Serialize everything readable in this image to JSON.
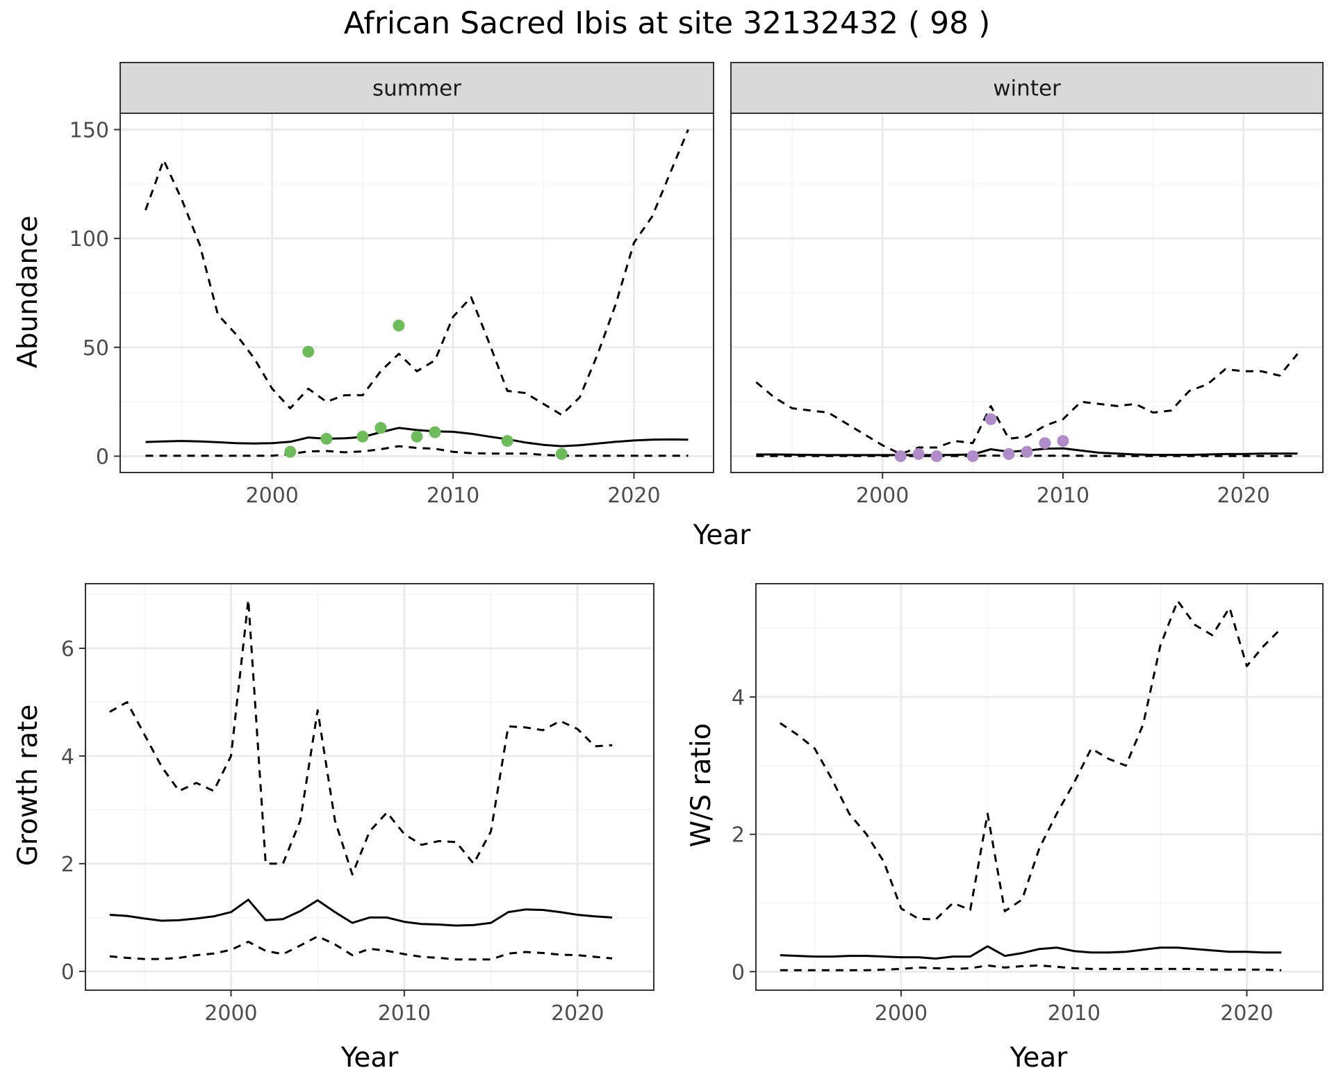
{
  "figure": {
    "title": "African Sacred Ibis at site 32132432 ( 98 )"
  },
  "colors": {
    "summer_points": "#6dbb5a",
    "winter_points": "#b08cc8",
    "lines": "#000000",
    "strip_fill": "#d9d9d9",
    "grid_major": "#ebebeb",
    "grid_minor": "#f5f5f5"
  },
  "chart_data": [
    {
      "type": "line",
      "panel": "summer",
      "strip_label": "summer",
      "ylabel": "Abundance",
      "xlabel": "Year",
      "xlim": [
        1991.6,
        2024.4
      ],
      "ylim": [
        -7.5,
        157.5
      ],
      "xticks": [
        2000,
        2010,
        2020
      ],
      "yticks": [
        0,
        50,
        100,
        150
      ],
      "x": [
        1993,
        1994,
        1995,
        1996,
        1997,
        1998,
        1999,
        2000,
        2001,
        2002,
        2003,
        2004,
        2005,
        2006,
        2007,
        2008,
        2009,
        2010,
        2011,
        2012,
        2013,
        2014,
        2015,
        2016,
        2017,
        2018,
        2019,
        2020,
        2021,
        2022,
        2023
      ],
      "series": [
        {
          "style": "solid",
          "values": [
            6.5,
            6.8,
            7.0,
            6.8,
            6.4,
            6.0,
            5.8,
            6.0,
            6.6,
            8.6,
            8.0,
            8.2,
            8.8,
            11.0,
            13.0,
            12.0,
            11.4,
            11.2,
            10.3,
            9.0,
            7.8,
            6.3,
            5.2,
            4.6,
            5.0,
            5.8,
            6.6,
            7.2,
            7.6,
            7.7,
            7.6
          ]
        },
        {
          "style": "dashed",
          "values": [
            113,
            136,
            118,
            97,
            65,
            56,
            45,
            31,
            22,
            31,
            25,
            28,
            28,
            39,
            47,
            39,
            44,
            64,
            73,
            52,
            30,
            29,
            24,
            19,
            27,
            47,
            70,
            98,
            110,
            130,
            150
          ]
        },
        {
          "style": "dashed",
          "values": [
            0.2,
            0.2,
            0.2,
            0.2,
            0.2,
            0.2,
            0.2,
            0.2,
            1.0,
            2.2,
            2.4,
            1.8,
            2.2,
            3.2,
            4.6,
            3.8,
            3.4,
            2.0,
            1.4,
            1.2,
            1.2,
            1.2,
            0.6,
            0.2,
            0.2,
            0.2,
            0.2,
            0.2,
            0.2,
            0.2,
            0.2
          ]
        }
      ],
      "points": {
        "x": [
          2001,
          2002,
          2003,
          2005,
          2006,
          2007,
          2008,
          2009,
          2013,
          2016
        ],
        "y": [
          2,
          48,
          8,
          9,
          13,
          60,
          9,
          11,
          7,
          1
        ]
      }
    },
    {
      "type": "line",
      "panel": "winter",
      "strip_label": "winter",
      "xlabel": "Year",
      "xlim": [
        1991.6,
        2024.4
      ],
      "ylim": [
        -7.5,
        157.5
      ],
      "xticks": [
        2000,
        2010,
        2020
      ],
      "yticks": [
        0,
        50,
        100,
        150
      ],
      "x": [
        1993,
        1994,
        1995,
        1996,
        1997,
        1998,
        1999,
        2000,
        2001,
        2002,
        2003,
        2004,
        2005,
        2006,
        2007,
        2008,
        2009,
        2010,
        2011,
        2012,
        2013,
        2014,
        2015,
        2016,
        2017,
        2018,
        2019,
        2020,
        2021,
        2022,
        2023
      ],
      "series": [
        {
          "style": "solid",
          "values": [
            0.8,
            0.8,
            0.7,
            0.6,
            0.5,
            0.5,
            0.5,
            0.5,
            0.5,
            0.5,
            0.5,
            0.6,
            0.8,
            3.2,
            2.0,
            2.6,
            3.4,
            3.6,
            2.6,
            1.6,
            1.2,
            0.8,
            0.6,
            0.6,
            0.6,
            0.8,
            1.0,
            1.0,
            1.2,
            1.2,
            1.2
          ]
        },
        {
          "style": "dashed",
          "values": [
            34,
            27,
            22,
            21,
            20,
            15,
            10,
            5,
            1,
            4,
            4,
            7,
            6,
            23,
            8,
            9,
            14,
            17,
            25,
            24,
            23,
            24,
            20,
            21,
            30,
            33,
            40,
            39,
            39,
            37,
            47
          ]
        },
        {
          "style": "dashed",
          "values": [
            0.1,
            0.1,
            0.1,
            0.1,
            0.1,
            0.1,
            0.1,
            0.1,
            0.1,
            0.1,
            0.1,
            0.1,
            0.1,
            0.3,
            0.2,
            0.2,
            0.2,
            0.2,
            0.2,
            0.1,
            0.1,
            0.1,
            0.1,
            0.1,
            0.1,
            0.1,
            0.1,
            0.1,
            0.1,
            0.1,
            0.1
          ]
        }
      ],
      "points": {
        "x": [
          2001,
          2002,
          2003,
          2005,
          2006,
          2007,
          2008,
          2009,
          2010
        ],
        "y": [
          0,
          1,
          0,
          0,
          17,
          1,
          2,
          6,
          7
        ]
      }
    },
    {
      "type": "line",
      "panel": "growth",
      "xlabel": "Year",
      "ylabel": "Growth rate",
      "xlim": [
        1991.6,
        2024.4
      ],
      "ylim": [
        -0.35,
        7.2
      ],
      "xticks": [
        2000,
        2010,
        2020
      ],
      "yticks": [
        0,
        2,
        4,
        6
      ],
      "x": [
        1993,
        1994,
        1995,
        1996,
        1997,
        1998,
        1999,
        2000,
        2001,
        2002,
        2003,
        2004,
        2005,
        2006,
        2007,
        2008,
        2009,
        2010,
        2011,
        2012,
        2013,
        2014,
        2015,
        2016,
        2017,
        2018,
        2019,
        2020,
        2021,
        2022
      ],
      "series": [
        {
          "style": "solid",
          "values": [
            1.05,
            1.03,
            0.98,
            0.94,
            0.95,
            0.98,
            1.02,
            1.1,
            1.33,
            0.95,
            0.97,
            1.12,
            1.32,
            1.1,
            0.9,
            1.0,
            1.0,
            0.92,
            0.88,
            0.87,
            0.85,
            0.86,
            0.9,
            1.1,
            1.15,
            1.14,
            1.1,
            1.05,
            1.02,
            1.0
          ]
        },
        {
          "style": "dashed",
          "values": [
            4.82,
            5.0,
            4.4,
            3.8,
            3.35,
            3.5,
            3.35,
            4.0,
            6.9,
            2.0,
            2.0,
            2.8,
            4.85,
            2.8,
            1.8,
            2.6,
            2.95,
            2.55,
            2.35,
            2.42,
            2.4,
            2.0,
            2.6,
            4.55,
            4.53,
            4.48,
            4.65,
            4.5,
            4.18,
            4.2
          ]
        },
        {
          "style": "dashed",
          "values": [
            0.28,
            0.25,
            0.23,
            0.23,
            0.25,
            0.3,
            0.33,
            0.4,
            0.55,
            0.38,
            0.32,
            0.48,
            0.65,
            0.5,
            0.3,
            0.42,
            0.38,
            0.32,
            0.27,
            0.25,
            0.22,
            0.22,
            0.22,
            0.33,
            0.36,
            0.34,
            0.31,
            0.3,
            0.27,
            0.24
          ]
        }
      ]
    },
    {
      "type": "line",
      "panel": "ws_ratio",
      "xlabel": "Year",
      "ylabel": "W/S ratio",
      "xlim": [
        1991.6,
        2024.4
      ],
      "ylim": [
        -0.27,
        5.65
      ],
      "xticks": [
        2000,
        2010,
        2020
      ],
      "yticks": [
        0,
        2,
        4
      ],
      "x": [
        1993,
        1994,
        1995,
        1996,
        1997,
        1998,
        1999,
        2000,
        2001,
        2002,
        2003,
        2004,
        2005,
        2006,
        2007,
        2008,
        2009,
        2010,
        2011,
        2012,
        2013,
        2014,
        2015,
        2016,
        2017,
        2018,
        2019,
        2020,
        2021,
        2022
      ],
      "series": [
        {
          "style": "solid",
          "values": [
            0.24,
            0.23,
            0.22,
            0.22,
            0.23,
            0.23,
            0.22,
            0.21,
            0.21,
            0.19,
            0.22,
            0.22,
            0.37,
            0.23,
            0.27,
            0.33,
            0.35,
            0.3,
            0.28,
            0.28,
            0.29,
            0.32,
            0.35,
            0.35,
            0.33,
            0.31,
            0.29,
            0.29,
            0.28,
            0.28
          ]
        },
        {
          "style": "dashed",
          "values": [
            3.62,
            3.45,
            3.25,
            2.8,
            2.3,
            2.0,
            1.6,
            0.92,
            0.77,
            0.76,
            1.0,
            0.9,
            2.3,
            0.88,
            1.05,
            1.8,
            2.3,
            2.75,
            3.25,
            3.1,
            3.0,
            3.6,
            4.75,
            5.4,
            5.05,
            4.9,
            5.3,
            4.45,
            4.75,
            5.0
          ]
        },
        {
          "style": "dashed",
          "values": [
            0.02,
            0.02,
            0.02,
            0.02,
            0.02,
            0.02,
            0.03,
            0.04,
            0.06,
            0.05,
            0.04,
            0.05,
            0.09,
            0.06,
            0.08,
            0.09,
            0.07,
            0.05,
            0.04,
            0.04,
            0.04,
            0.04,
            0.04,
            0.04,
            0.04,
            0.03,
            0.03,
            0.03,
            0.03,
            0.02
          ]
        }
      ]
    }
  ]
}
